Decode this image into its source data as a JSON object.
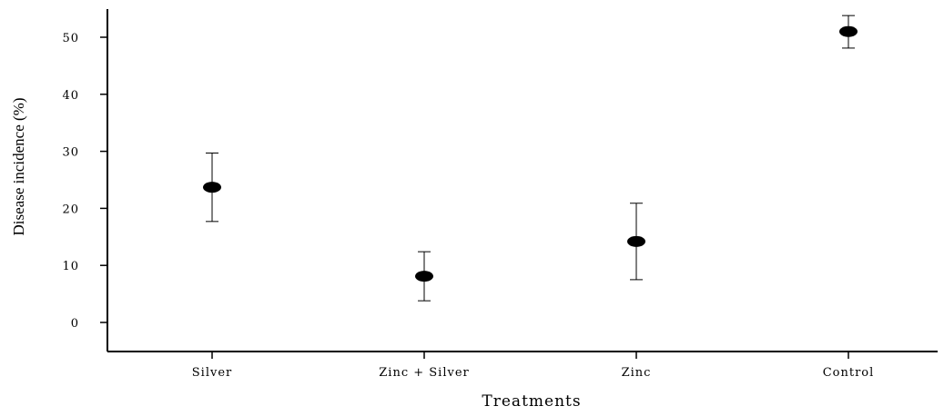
{
  "chart_data": {
    "type": "scatter",
    "title": "",
    "xlabel": "Treatments",
    "ylabel": "Disease incidence (%)",
    "categories": [
      "Silver",
      "Zinc + Silver",
      "Zinc",
      "Control"
    ],
    "values": [
      23.7,
      8.1,
      14.2,
      51.0
    ],
    "error_low": [
      17.7,
      3.8,
      7.5,
      48.1
    ],
    "error_high": [
      29.7,
      12.4,
      20.9,
      53.8
    ],
    "ylim": [
      -5,
      55
    ],
    "yticks": [
      0,
      10,
      20,
      30,
      40,
      50
    ],
    "grid": false,
    "marker_color": "#000000"
  }
}
